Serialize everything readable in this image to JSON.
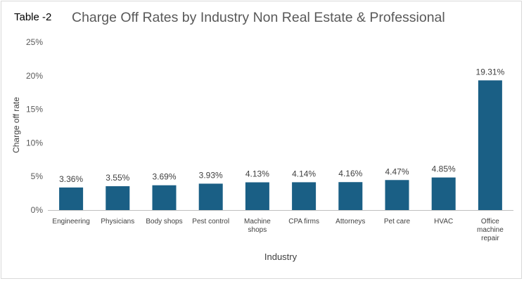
{
  "table_label": "Table -2",
  "chart_data": {
    "type": "bar",
    "title": "Charge Off Rates by Industry Non Real Estate & Professional",
    "xlabel": "Industry",
    "ylabel": "Charge off rate",
    "ylim": [
      0,
      25
    ],
    "ytick_labels": [
      "0%",
      "5%",
      "10%",
      "15%",
      "20%",
      "25%"
    ],
    "categories": [
      [
        "Engineering"
      ],
      [
        "Physicians"
      ],
      [
        "Body shops"
      ],
      [
        "Pest control"
      ],
      [
        "Machine",
        "shops"
      ],
      [
        "CPA firms"
      ],
      [
        "Attorneys"
      ],
      [
        "Pet care"
      ],
      [
        "HVAC"
      ],
      [
        "Office",
        "machine",
        "repair"
      ]
    ],
    "values": [
      3.36,
      3.55,
      3.69,
      3.93,
      4.13,
      4.14,
      4.16,
      4.47,
      4.85,
      19.31
    ],
    "data_labels": [
      "3.36%",
      "3.55%",
      "3.69%",
      "3.93%",
      "4.13%",
      "4.14%",
      "4.16%",
      "4.47%",
      "4.85%",
      "19.31%"
    ],
    "bar_color": "#1a5f85",
    "grid": false,
    "legend": "none"
  }
}
